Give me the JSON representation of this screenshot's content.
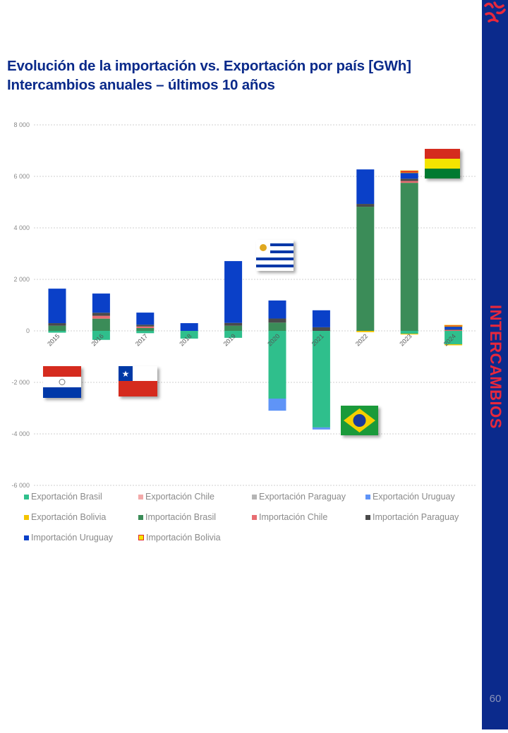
{
  "title_line1": "Evolución de la importación vs. Exportación por país [GWh]",
  "title_line2": "Intercambios anuales – últimos 10 años",
  "sidebar_label": "INTERCAMBIOS",
  "page_number": "60",
  "chart_data": {
    "type": "bar",
    "stacked": true,
    "title": "Evolución de la importación vs. Exportación por país [GWh]",
    "subtitle": "Intercambios anuales – últimos 10 años",
    "xlabel": "",
    "ylabel": "GWh",
    "ylim": [
      -6000,
      8000
    ],
    "yticks": [
      -6000,
      -4000,
      -2000,
      0,
      2000,
      4000,
      6000,
      8000
    ],
    "ytick_labels": [
      "-6 000",
      "-4 000",
      "-2 000",
      "0",
      "2 000",
      "4 000",
      "6 000",
      "8 000"
    ],
    "grid": true,
    "legend_placement": "bottom",
    "categories": [
      "2015",
      "2016",
      "2017",
      "2018",
      "2019",
      "2020",
      "2021",
      "2022",
      "2023",
      "2024"
    ],
    "series": [
      {
        "name": "Exportación Brasil",
        "color": "#2fbf8c",
        "values": [
          -70,
          -350,
          -90,
          -300,
          -270,
          -2630,
          -3750,
          0,
          -110,
          -520
        ]
      },
      {
        "name": "Exportación Chile",
        "color": "#f3a9a9",
        "values": [
          0,
          0,
          0,
          0,
          0,
          0,
          0,
          0,
          0,
          0
        ]
      },
      {
        "name": "Exportación Paraguay",
        "color": "#b5b5b5",
        "values": [
          0,
          0,
          0,
          0,
          0,
          0,
          0,
          0,
          0,
          0
        ]
      },
      {
        "name": "Exportación Uruguay",
        "color": "#5f94f7",
        "values": [
          0,
          0,
          0,
          0,
          0,
          -470,
          -80,
          0,
          0,
          0
        ]
      },
      {
        "name": "Exportación Bolivia",
        "color": "#f4c400",
        "values": [
          0,
          0,
          0,
          0,
          0,
          0,
          0,
          -50,
          -30,
          -40
        ]
      },
      {
        "name": "Importación Brasil",
        "color": "#3b8c58",
        "values": [
          200,
          475,
          110,
          0,
          200,
          320,
          0,
          4820,
          5750,
          0
        ]
      },
      {
        "name": "Importación Chile",
        "color": "#e86d72",
        "values": [
          0,
          110,
          60,
          0,
          0,
          0,
          0,
          0,
          70,
          30
        ]
      },
      {
        "name": "Importación Paraguay",
        "color": "#4a4a4a",
        "values": [
          100,
          120,
          70,
          0,
          110,
          160,
          140,
          110,
          90,
          30
        ]
      },
      {
        "name": "Importación Uruguay",
        "color": "#0a40c8",
        "values": [
          1340,
          745,
          470,
          300,
          2400,
          700,
          660,
          1340,
          230,
          110
        ]
      },
      {
        "name": "Importación Bolivia",
        "color": "#e02828",
        "values": [
          0,
          0,
          0,
          0,
          0,
          0,
          0,
          0,
          80,
          50
        ]
      }
    ]
  },
  "flags": [
    "Paraguay",
    "Chile",
    "Uruguay",
    "Brasil",
    "Bolivia"
  ]
}
